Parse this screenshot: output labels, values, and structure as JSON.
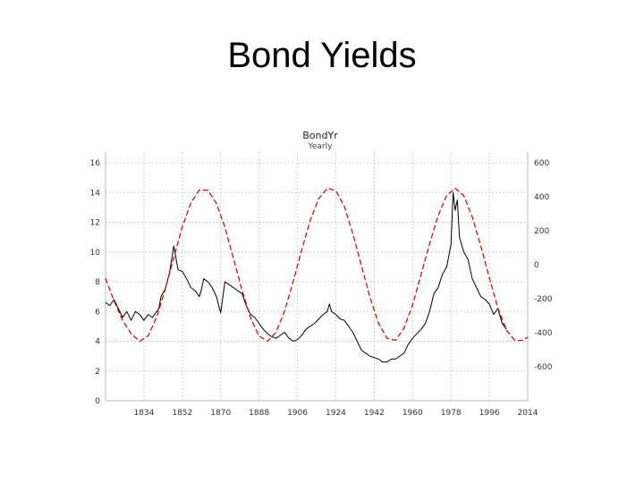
{
  "slide": {
    "title": "Bond Yields"
  },
  "colors": {
    "yield_line": "#000000",
    "cycle_line": "#cc0000",
    "grid": "#d0d0d0",
    "background": "#ffffff"
  },
  "chart_data": {
    "type": "line",
    "title": "BondYr",
    "subtitle": "Yearly",
    "grid": true,
    "xlim": [
      1816,
      2014
    ],
    "x_ticks": [
      "1834",
      "1852",
      "1870",
      "1888",
      "1906",
      "1924",
      "1942",
      "1960",
      "1978",
      "1996",
      "2014"
    ],
    "x_tick_values": [
      1834,
      1852,
      1870,
      1888,
      1906,
      1924,
      1942,
      1960,
      1978,
      1996,
      2014
    ],
    "y_left": {
      "lim": [
        0,
        16
      ],
      "ticks": [
        "0",
        "2",
        "4",
        "6",
        "8",
        "10",
        "12",
        "14",
        "16"
      ]
    },
    "y_right": {
      "lim": [
        -800,
        600
      ],
      "ticks": [
        "-600",
        "-400",
        "-200",
        "0",
        "200",
        "400",
        "600"
      ]
    },
    "series": [
      {
        "axis": "left",
        "color": "#000000",
        "x": [
          1816,
          1818,
          1820,
          1822,
          1824,
          1826,
          1828,
          1830,
          1832,
          1834,
          1836,
          1838,
          1840,
          1841,
          1842,
          1844,
          1846,
          1848,
          1850,
          1852,
          1854,
          1856,
          1858,
          1860,
          1861,
          1862,
          1864,
          1866,
          1868,
          1870,
          1872,
          1874,
          1876,
          1878,
          1880,
          1882,
          1884,
          1886,
          1888,
          1890,
          1892,
          1894,
          1896,
          1898,
          1900,
          1902,
          1904,
          1906,
          1908,
          1910,
          1912,
          1914,
          1916,
          1918,
          1920,
          1921,
          1922,
          1924,
          1926,
          1928,
          1930,
          1932,
          1934,
          1936,
          1938,
          1940,
          1942,
          1944,
          1946,
          1948,
          1950,
          1952,
          1954,
          1956,
          1958,
          1960,
          1962,
          1964,
          1966,
          1968,
          1970,
          1972,
          1974,
          1976,
          1978,
          1979,
          1980,
          1981,
          1982,
          1984,
          1986,
          1988,
          1990,
          1992,
          1994,
          1996,
          1998,
          2000,
          2002,
          2004
        ],
        "values": [
          6.6,
          6.4,
          6.8,
          6.2,
          5.6,
          6.0,
          5.4,
          6.0,
          5.8,
          5.4,
          5.8,
          5.6,
          6.0,
          6.2,
          7.0,
          7.5,
          8.6,
          10.4,
          8.8,
          8.7,
          8.2,
          7.6,
          7.4,
          7.0,
          7.5,
          8.2,
          8.0,
          7.6,
          7.0,
          5.9,
          8.0,
          7.8,
          7.6,
          7.4,
          7.2,
          6.4,
          5.8,
          5.6,
          5.2,
          4.8,
          4.5,
          4.3,
          4.2,
          4.4,
          4.6,
          4.2,
          4.0,
          4.1,
          4.4,
          4.8,
          5.0,
          5.2,
          5.5,
          5.8,
          6.0,
          6.5,
          6.0,
          5.8,
          5.5,
          5.4,
          5.0,
          4.6,
          4.0,
          3.4,
          3.2,
          3.0,
          2.9,
          2.8,
          2.6,
          2.6,
          2.8,
          2.8,
          3.0,
          3.2,
          3.8,
          4.2,
          4.5,
          4.8,
          5.2,
          6.0,
          7.2,
          7.6,
          8.5,
          9.0,
          10.5,
          14.0,
          12.8,
          13.5,
          11.0,
          10.0,
          9.5,
          8.2,
          7.6,
          7.0,
          6.8,
          6.5,
          5.8,
          6.2,
          5.2,
          4.8
        ]
      },
      {
        "axis": "right",
        "color": "#cc0000",
        "dashed": true,
        "x": [
          1816,
          1820,
          1824,
          1828,
          1832,
          1836,
          1840,
          1844,
          1848,
          1852,
          1856,
          1860,
          1864,
          1868,
          1872,
          1876,
          1880,
          1884,
          1888,
          1892,
          1896,
          1900,
          1904,
          1908,
          1912,
          1916,
          1920,
          1924,
          1928,
          1932,
          1936,
          1940,
          1944,
          1948,
          1952,
          1956,
          1960,
          1964,
          1968,
          1972,
          1976,
          1980,
          1984,
          1988,
          1992,
          1996,
          2000,
          2004,
          2008,
          2012,
          2014
        ],
        "values": [
          -80,
          -212,
          -327,
          -406,
          -450,
          -418,
          -308,
          -145,
          42,
          223,
          364,
          440,
          439,
          361,
          220,
          38,
          -149,
          -312,
          -420,
          -450,
          -397,
          -272,
          -99,
          87,
          259,
          390,
          450,
          436,
          344,
          183,
          -5,
          -191,
          -343,
          -432,
          -444,
          -373,
          -236,
          -57,
          123,
          290,
          408,
          450,
          407,
          281,
          110,
          -76,
          -254,
          -385,
          -446,
          -444,
          -426
        ]
      }
    ]
  }
}
